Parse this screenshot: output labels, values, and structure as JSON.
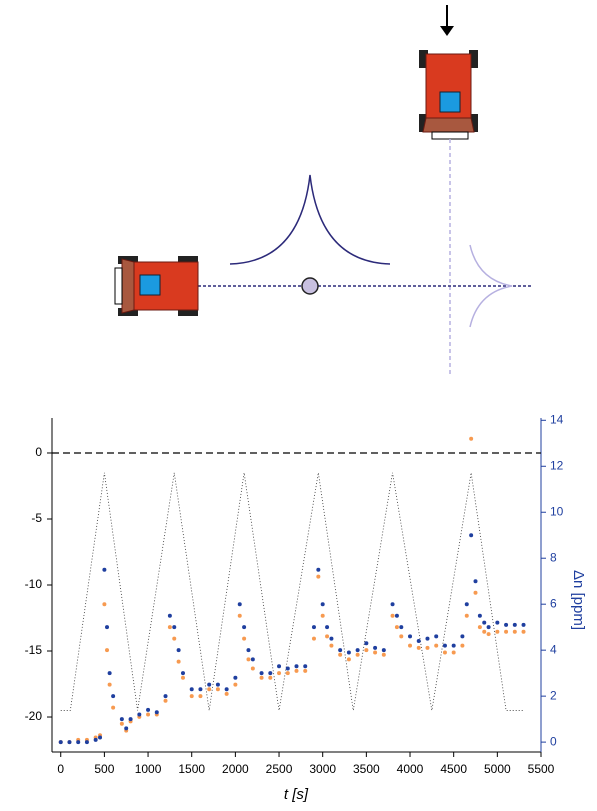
{
  "chart_data": {
    "type": "scatter",
    "xlabel": "t [s]",
    "y2label": "Δn [ppm]",
    "xlim": [
      -100,
      5500
    ],
    "xticks": [
      0,
      500,
      1000,
      1500,
      2000,
      2500,
      3000,
      3500,
      4000,
      4500,
      5000,
      5500
    ],
    "ylim": [
      -22.65,
      2.65
    ],
    "yticks": [
      0,
      -5,
      -10,
      -15,
      -20
    ],
    "y2lim": [
      -0.43,
      14.1
    ],
    "y2ticks": [
      0,
      2,
      4,
      6,
      8,
      10,
      12,
      14
    ],
    "hline": 0,
    "x": [
      0,
      100,
      200,
      300,
      400,
      450,
      500,
      530,
      560,
      600,
      700,
      750,
      800,
      900,
      1000,
      1100,
      1200,
      1250,
      1300,
      1350,
      1400,
      1500,
      1600,
      1700,
      1800,
      1900,
      2000,
      2050,
      2100,
      2150,
      2200,
      2300,
      2400,
      2500,
      2600,
      2700,
      2800,
      2900,
      2950,
      3000,
      3050,
      3100,
      3200,
      3300,
      3400,
      3500,
      3600,
      3700,
      3800,
      3850,
      3900,
      4000,
      4100,
      4200,
      4300,
      4400,
      4500,
      4600,
      4650,
      4700,
      4750,
      4800,
      4850,
      4900,
      5000,
      5100,
      5200,
      5300
    ],
    "series": [
      {
        "color": "#f79a50",
        "axis": "y2",
        "values": [
          0,
          0,
          0.1,
          0.1,
          0.2,
          0.3,
          6,
          4,
          2.5,
          1.5,
          0.8,
          0.5,
          0.9,
          1.1,
          1.2,
          1.2,
          1.8,
          5,
          4.5,
          3.5,
          2.8,
          2,
          2,
          2.3,
          2.3,
          2.1,
          2.5,
          5.5,
          4.5,
          3.6,
          3.2,
          2.8,
          2.8,
          3,
          3,
          3.1,
          3.1,
          4.5,
          7.2,
          5.5,
          4.6,
          4.2,
          3.8,
          3.6,
          3.8,
          4,
          3.9,
          3.8,
          5.5,
          5,
          4.6,
          4.2,
          4.1,
          4.1,
          4.2,
          3.9,
          3.9,
          4.2,
          5.5,
          13.2,
          6.5,
          5,
          4.8,
          4.7,
          4.8,
          4.8,
          4.8,
          4.8
        ]
      },
      {
        "color": "#1f3f9f",
        "axis": "y2",
        "values": [
          0,
          0,
          0,
          0,
          0.1,
          0.2,
          7.5,
          5,
          3,
          2,
          1,
          0.6,
          1,
          1.2,
          1.4,
          1.3,
          2,
          5.5,
          5,
          4,
          3,
          2.3,
          2.3,
          2.5,
          2.5,
          2.3,
          2.8,
          6,
          5,
          4,
          3.6,
          3,
          3,
          3.3,
          3.2,
          3.3,
          3.3,
          5,
          7.5,
          6,
          5,
          4.5,
          4,
          3.9,
          4,
          4.3,
          4.1,
          4,
          6,
          5.5,
          5,
          4.6,
          4.4,
          4.5,
          4.6,
          4.2,
          4.2,
          4.6,
          6,
          9,
          7,
          5.5,
          5.2,
          5,
          5.2,
          5.1,
          5.1,
          5.1
        ]
      }
    ],
    "reference": {
      "color": "#333333",
      "x": [
        0,
        110,
        500,
        880,
        1300,
        1700,
        2100,
        2500,
        2950,
        3350,
        3800,
        4250,
        4700,
        5100,
        5300
      ],
      "values": [
        -19.5,
        -19.5,
        -1.5,
        -19.5,
        -1.5,
        -19.5,
        -1.5,
        -19.5,
        -1.5,
        -19.5,
        -1.5,
        -19.5,
        -1.5,
        -19.5,
        -19.5
      ]
    }
  }
}
